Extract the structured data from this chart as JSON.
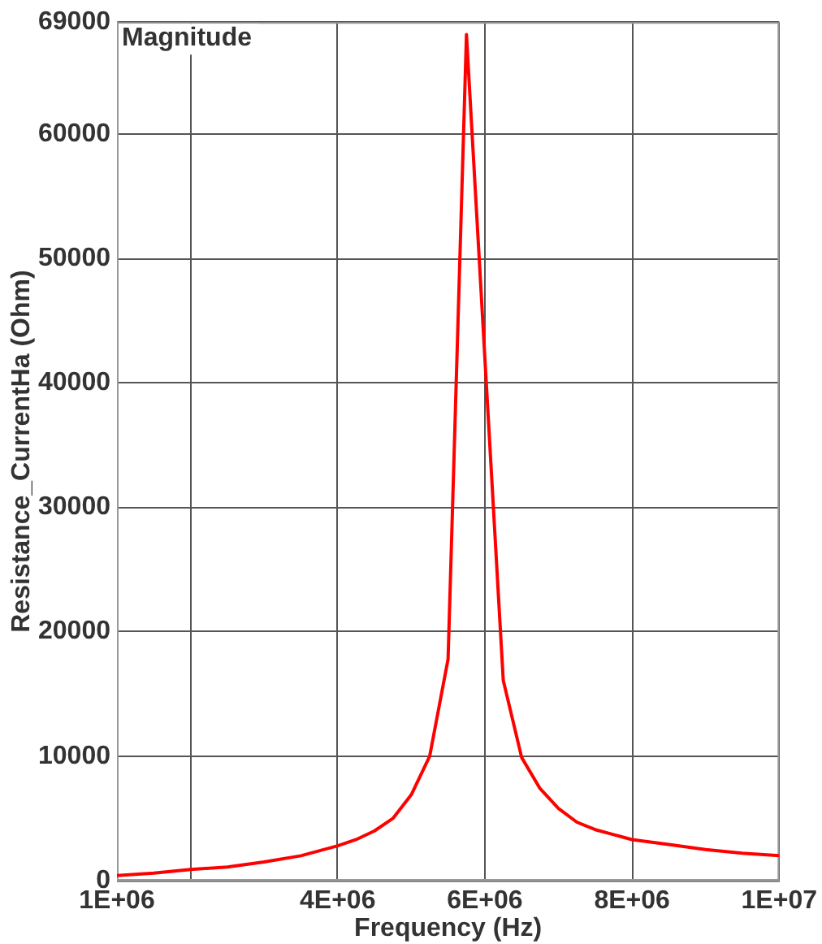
{
  "chart_data": {
    "type": "line",
    "title": "Magnitude",
    "xlabel": "Frequency (Hz)",
    "ylabel": "Resistance_CurrentHa (Ohm)",
    "x": [
      1000000,
      1500000,
      2000000,
      2500000,
      3000000,
      3500000,
      4000000,
      4250000,
      4500000,
      4750000,
      5000000,
      5250000,
      5500000,
      5750000,
      6000000,
      6250000,
      6500000,
      6750000,
      7000000,
      7250000,
      7500000,
      7750000,
      8000000,
      8500000,
      9000000,
      9500000,
      10000000
    ],
    "values": [
      400,
      600,
      900,
      1100,
      1500,
      2000,
      2800,
      3300,
      4000,
      5000,
      6900,
      10000,
      17800,
      68000,
      42000,
      16100,
      9900,
      7400,
      5800,
      4700,
      4100,
      3700,
      3300,
      2900,
      2500,
      2200,
      2000
    ],
    "color": "#ff0000",
    "xlim": [
      1000000,
      10000000
    ],
    "xticks": [
      {
        "value": 1000000,
        "label": "1E+06"
      },
      {
        "value": 2000000,
        "label": null
      },
      {
        "value": 4000000,
        "label": "4E+06"
      },
      {
        "value": 6000000,
        "label": "6E+06"
      },
      {
        "value": 8000000,
        "label": "8E+06"
      },
      {
        "value": 10000000,
        "label": "1E+07"
      }
    ],
    "ylim": [
      0,
      69000
    ],
    "yticks": [
      0,
      10000,
      20000,
      30000,
      40000,
      50000,
      60000,
      69000
    ],
    "grid": true
  }
}
